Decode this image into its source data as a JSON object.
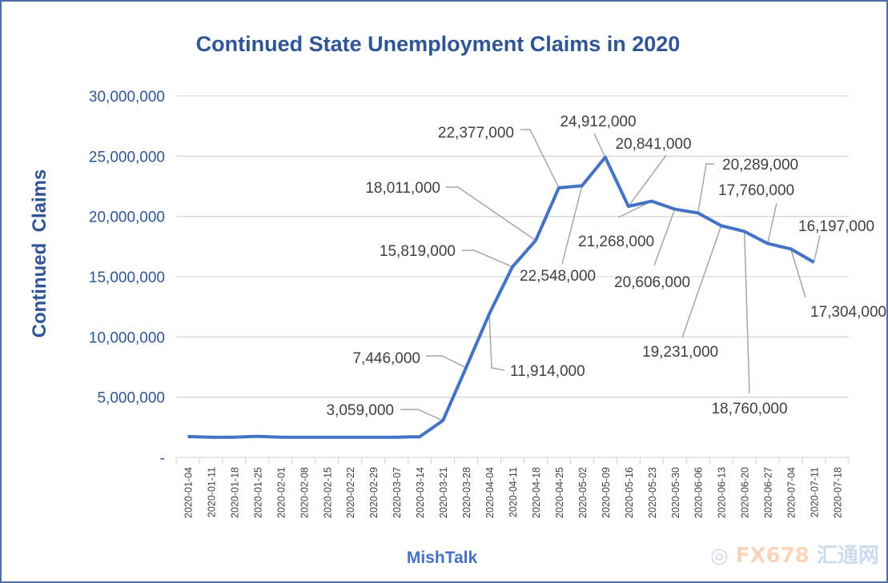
{
  "chart_data": {
    "type": "line",
    "title": "Continued State Unemployment Claims in 2020",
    "ylabel": "Continued  Claims",
    "xlabel": "",
    "ylim": [
      0,
      30000000
    ],
    "yticks": [
      0,
      5000000,
      10000000,
      15000000,
      20000000,
      25000000,
      30000000
    ],
    "ytick_labels": [
      "-",
      "5,000,000",
      "10,000,000",
      "15,000,000",
      "20,000,000",
      "25,000,000",
      "30,000,000"
    ],
    "grid": true,
    "legend": "none",
    "x_tick_labels": [
      "2020-01-04",
      "2020-01-11",
      "2020-01-18",
      "2020-01-25",
      "2020-02-01",
      "2020-02-08",
      "2020-02-15",
      "2020-02-22",
      "2020-02-29",
      "2020-03-07",
      "2020-03-14",
      "2020-03-21",
      "2020-03-28",
      "2020-04-04",
      "2020-04-11",
      "2020-04-18",
      "2020-04-25",
      "2020-05-02",
      "2020-05-09",
      "2020-05-16",
      "2020-05-23",
      "2020-05-30",
      "2020-06-06",
      "2020-06-13",
      "2020-06-20",
      "2020-06-27",
      "2020-07-04",
      "2020-07-11",
      "2020-07-18"
    ],
    "series": [
      {
        "color": "#4472C4",
        "x": [
          "2020-01-04",
          "2020-01-11",
          "2020-01-18",
          "2020-01-25",
          "2020-02-01",
          "2020-02-08",
          "2020-02-15",
          "2020-02-22",
          "2020-02-29",
          "2020-03-07",
          "2020-03-14",
          "2020-03-21",
          "2020-03-28",
          "2020-04-04",
          "2020-04-11",
          "2020-04-18",
          "2020-04-25",
          "2020-05-02",
          "2020-05-09",
          "2020-05-16",
          "2020-05-23",
          "2020-05-30",
          "2020-06-06",
          "2020-06-13",
          "2020-06-20",
          "2020-06-27",
          "2020-07-04",
          "2020-07-11"
        ],
        "values": [
          1730000,
          1680000,
          1680000,
          1750000,
          1680000,
          1680000,
          1680000,
          1680000,
          1680000,
          1680000,
          1720000,
          3059000,
          7446000,
          11914000,
          15819000,
          18011000,
          22377000,
          22548000,
          24912000,
          20841000,
          21268000,
          20606000,
          20289000,
          19231000,
          18760000,
          17760000,
          17304000,
          16197000
        ],
        "data_labels": [
          null,
          null,
          null,
          null,
          null,
          null,
          null,
          null,
          null,
          null,
          null,
          "3,059,000",
          "7,446,000",
          "11,914,000",
          "15,819,000",
          "18,011,000",
          "22,377,000",
          "22,548,000",
          "24,912,000",
          "20,841,000",
          "21,268,000",
          "20,606,000",
          "20,289,000",
          "19,231,000",
          "18,760,000",
          "17,760,000",
          "17,304,000",
          "16,197,000"
        ]
      }
    ]
  },
  "source_label": "MishTalk",
  "watermark": "FX678 汇通网"
}
